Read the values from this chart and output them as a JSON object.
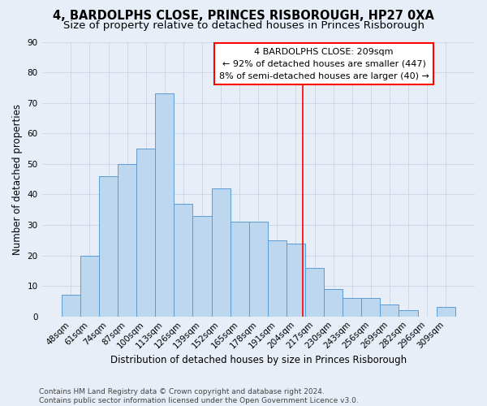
{
  "title": "4, BARDOLPHS CLOSE, PRINCES RISBOROUGH, HP27 0XA",
  "subtitle": "Size of property relative to detached houses in Princes Risborough",
  "xlabel": "Distribution of detached houses by size in Princes Risborough",
  "ylabel": "Number of detached properties",
  "footnote1": "Contains HM Land Registry data © Crown copyright and database right 2024.",
  "footnote2": "Contains public sector information licensed under the Open Government Licence v3.0.",
  "bar_labels": [
    "48sqm",
    "61sqm",
    "74sqm",
    "87sqm",
    "100sqm",
    "113sqm",
    "126sqm",
    "139sqm",
    "152sqm",
    "165sqm",
    "178sqm",
    "191sqm",
    "204sqm",
    "217sqm",
    "230sqm",
    "243sqm",
    "256sqm",
    "269sqm",
    "282sqm",
    "296sqm",
    "309sqm"
  ],
  "bar_values": [
    7,
    20,
    46,
    50,
    55,
    73,
    37,
    33,
    42,
    31,
    31,
    25,
    24,
    16,
    9,
    6,
    6,
    4,
    2,
    0,
    3
  ],
  "bar_color": "#bdd7ee",
  "bar_edge_color": "#5b9bd5",
  "grid_color": "#d0d8e8",
  "background_color": "#e8eef7",
  "annotation_text": "4 BARDOLPHS CLOSE: 209sqm\n← 92% of detached houses are smaller (447)\n8% of semi-detached houses are larger (40) →",
  "ylim": [
    0,
    90
  ],
  "yticks": [
    0,
    10,
    20,
    30,
    40,
    50,
    60,
    70,
    80,
    90
  ],
  "title_fontsize": 10.5,
  "subtitle_fontsize": 9.5,
  "axis_label_fontsize": 8.5,
  "tick_fontsize": 7.5,
  "annotation_fontsize": 8,
  "footnote_fontsize": 6.5
}
